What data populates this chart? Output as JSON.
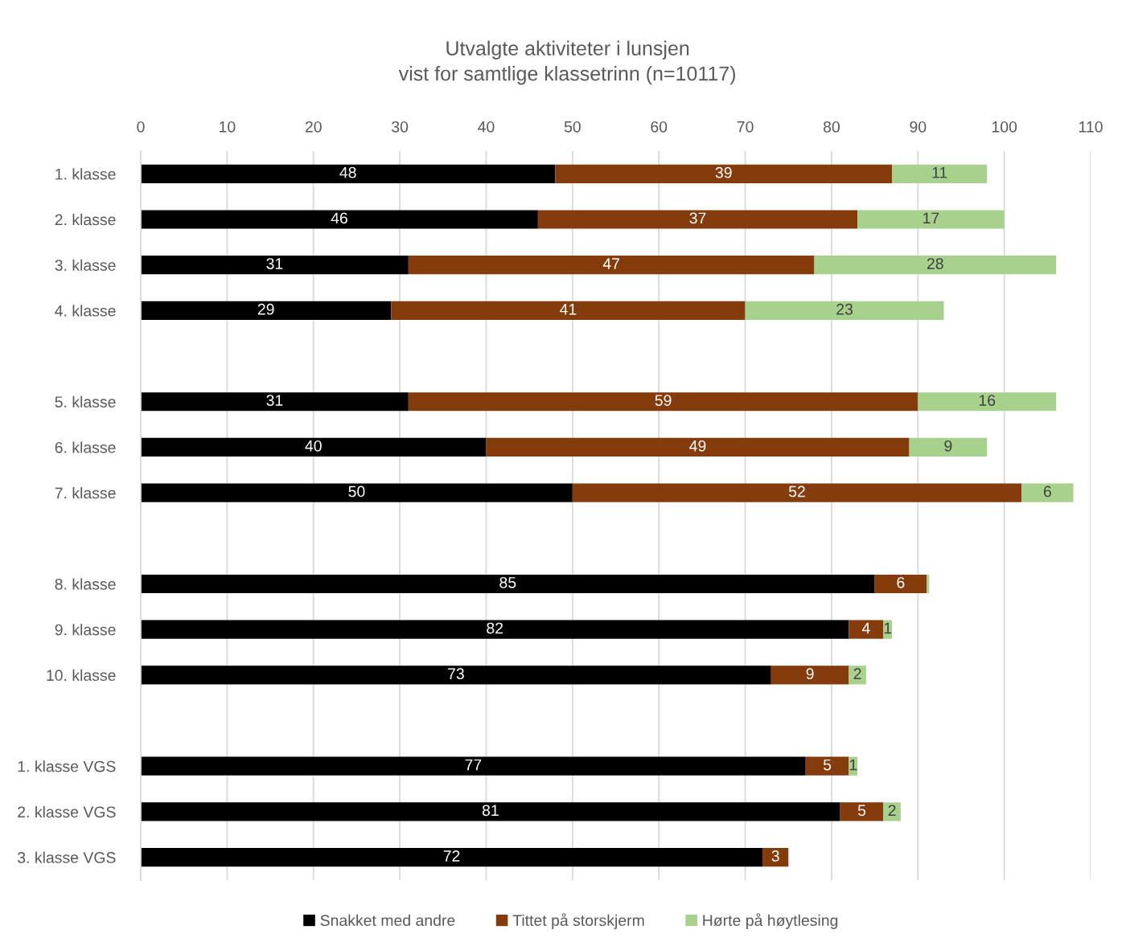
{
  "chart_data": {
    "type": "bar",
    "orientation": "horizontal",
    "stacked": true,
    "title": "Utvalgte aktiviteter i lunsjen\nvist for samtlige klassetrinn (n=10117)",
    "categories": [
      "1. klasse",
      "2. klasse",
      "3. klasse",
      "4. klasse",
      null,
      "5. klasse",
      "6. klasse",
      "7. klasse",
      null,
      "8. klasse",
      "9. klasse",
      "10. klasse",
      null,
      "1. klasse VGS",
      "2. klasse VGS",
      "3. klasse VGS"
    ],
    "series": [
      {
        "name": "Snakket med andre",
        "color": "#000000",
        "values": [
          48,
          46,
          31,
          29,
          null,
          31,
          40,
          50,
          null,
          85,
          82,
          73,
          null,
          77,
          81,
          72
        ],
        "value_labels": [
          "48",
          "46",
          "31",
          "29",
          null,
          "31",
          "40",
          "50",
          null,
          "85",
          "82",
          "73",
          null,
          "77",
          "81",
          "72"
        ]
      },
      {
        "name": "Tittet på storskjerm",
        "color": "#843c0c",
        "values": [
          39,
          37,
          47,
          41,
          null,
          59,
          49,
          52,
          null,
          6,
          4,
          9,
          null,
          5,
          5,
          3
        ],
        "value_labels": [
          "39",
          "37",
          "47",
          "41",
          null,
          "59",
          "49",
          "52",
          null,
          "6",
          "4",
          "9",
          null,
          "5",
          "5",
          "3"
        ]
      },
      {
        "name": "Hørte på høytlesing",
        "color": "#a9d18e",
        "values": [
          11,
          17,
          28,
          23,
          null,
          16,
          9,
          6,
          null,
          0.3,
          1,
          2,
          null,
          1,
          2,
          null
        ],
        "value_labels": [
          "11",
          "17",
          "28",
          "23",
          null,
          "16",
          "9",
          "6",
          null,
          null,
          "1",
          "2",
          null,
          "1",
          "2",
          null
        ]
      }
    ],
    "xlim": [
      0,
      110
    ],
    "xticks": [
      0,
      10,
      20,
      30,
      40,
      50,
      60,
      70,
      80,
      90,
      100,
      110
    ],
    "grid": "x",
    "legend": "bottom"
  }
}
